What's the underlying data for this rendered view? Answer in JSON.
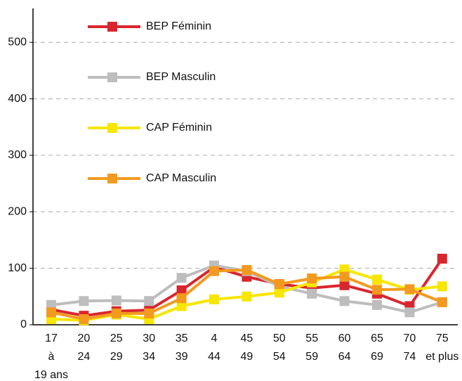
{
  "chart_data": {
    "type": "line",
    "categories": [
      [
        "17",
        "à",
        "19 ans"
      ],
      [
        "20",
        "24"
      ],
      [
        "25",
        "29"
      ],
      [
        "30",
        "34"
      ],
      [
        "35",
        "39"
      ],
      [
        "4",
        "44"
      ],
      [
        "45",
        "49"
      ],
      [
        "50",
        "54"
      ],
      [
        "55",
        "59"
      ],
      [
        "60",
        "64"
      ],
      [
        "65",
        "69"
      ],
      [
        "70",
        "74"
      ],
      [
        "75",
        "et plus"
      ]
    ],
    "series": [
      {
        "name": "BEP Féminin",
        "color": "#d9262e",
        "values": [
          27,
          16,
          24,
          26,
          61,
          102,
          85,
          72,
          65,
          70,
          55,
          33,
          117
        ]
      },
      {
        "name": "BEP Masculin",
        "color": "#bdbdbd",
        "values": [
          35,
          42,
          43,
          42,
          83,
          105,
          95,
          68,
          55,
          42,
          35,
          22,
          40
        ]
      },
      {
        "name": "CAP Féminin",
        "color": "#f7e600",
        "values": [
          10,
          8,
          18,
          10,
          33,
          45,
          50,
          57,
          75,
          98,
          80,
          62,
          68
        ]
      },
      {
        "name": "CAP Masculin",
        "color": "#f29a1f",
        "values": [
          22,
          10,
          20,
          20,
          47,
          95,
          97,
          72,
          82,
          85,
          62,
          63,
          40
        ]
      }
    ],
    "ylim": [
      0,
      560
    ],
    "yticks": [
      0,
      100,
      200,
      300,
      400,
      500
    ],
    "grid": true
  }
}
